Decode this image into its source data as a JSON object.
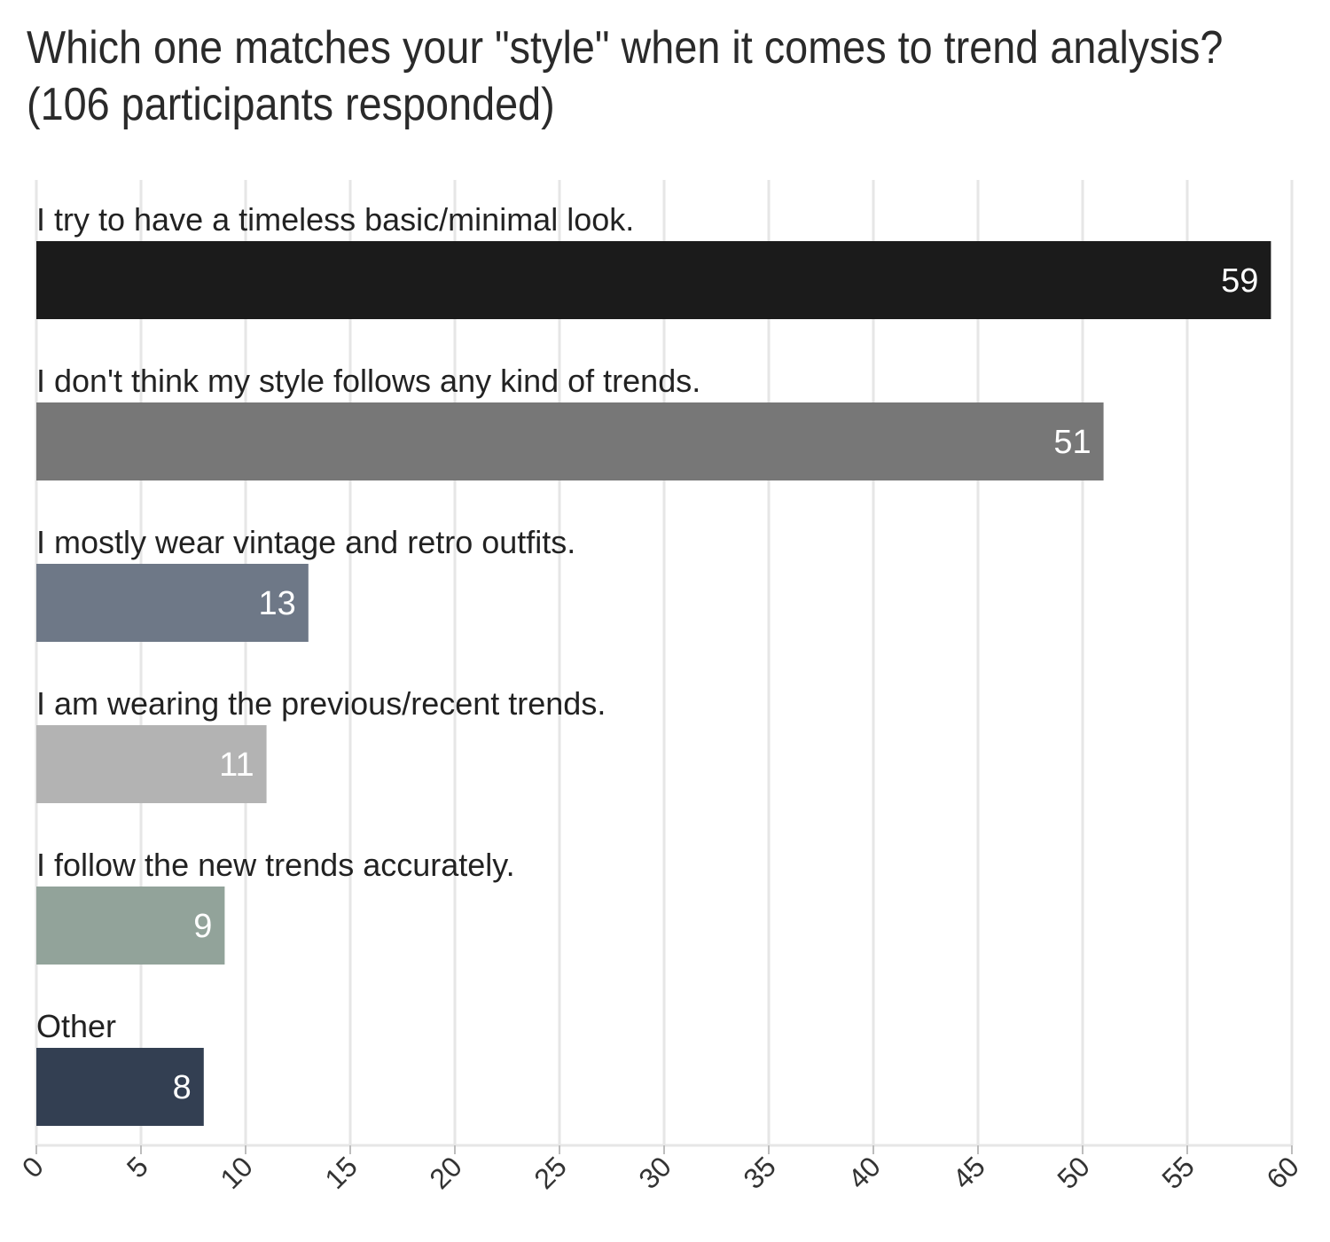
{
  "chart_data": {
    "type": "bar",
    "orientation": "horizontal",
    "title_lines": [
      "Which one matches your \"style\" when it comes to trend analysis?",
      "(106 participants responded)"
    ],
    "categories": [
      "I try to have a timeless basic/minimal look.",
      "I don't think my style follows any kind of trends.",
      "I mostly wear vintage and retro outfits.",
      "I am wearing the previous/recent trends.",
      "I follow the new trends accurately.",
      "Other"
    ],
    "values": [
      59,
      51,
      13,
      11,
      9,
      8
    ],
    "colors": [
      "#1b1b1b",
      "#777777",
      "#6e7887",
      "#b3b3b3",
      "#92a39a",
      "#333f52"
    ],
    "xlim": [
      0,
      60
    ],
    "x_ticks": [
      0,
      5,
      10,
      15,
      20,
      25,
      30,
      35,
      40,
      45,
      50,
      55,
      60
    ],
    "grid": true,
    "data_labels": true
  }
}
